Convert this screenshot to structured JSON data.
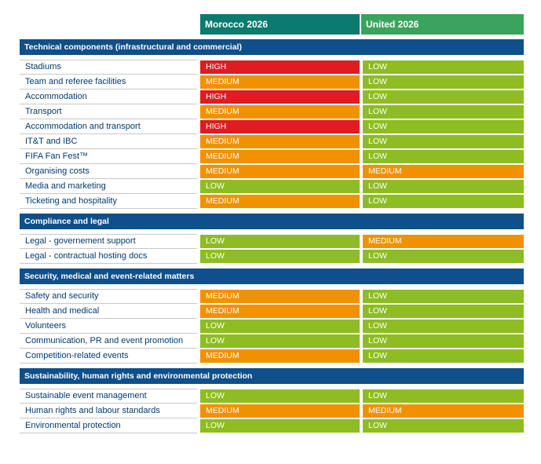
{
  "colors": {
    "section_bar": "#0f4f8a",
    "header_morocco": "#0b7a6f",
    "header_united": "#3aa35c",
    "label_text": "#003a70",
    "HIGH": "#e01b22",
    "MEDIUM": "#f29100",
    "LOW": "#8dbd22"
  },
  "columns": [
    "Morocco 2026",
    "United 2026"
  ],
  "sections": [
    {
      "title": "Technical components (infrastructural and commercial)",
      "rows": [
        {
          "label": "Stadiums",
          "morocco": "HIGH",
          "united": "LOW"
        },
        {
          "label": "Team and referee facilities",
          "morocco": "MEDIUM",
          "united": "LOW"
        },
        {
          "label": "Accommodation",
          "morocco": "HIGH",
          "united": "LOW"
        },
        {
          "label": "Transport",
          "morocco": "MEDIUM",
          "united": "LOW"
        },
        {
          "label": "Accommodation and transport",
          "morocco": "HIGH",
          "united": "LOW"
        },
        {
          "label": "IT&T and IBC",
          "morocco": "MEDIUM",
          "united": "LOW"
        },
        {
          "label": "FIFA Fan Fest™",
          "morocco": "MEDIUM",
          "united": "LOW"
        },
        {
          "label": "Organising costs",
          "morocco": "MEDIUM",
          "united": "MEDIUM"
        },
        {
          "label": "Media and marketing",
          "morocco": "LOW",
          "united": "LOW"
        },
        {
          "label": "Ticketing and hospitality",
          "morocco": "MEDIUM",
          "united": "LOW"
        }
      ]
    },
    {
      "title": "Compliance and legal",
      "rows": [
        {
          "label": "Legal - governement support",
          "morocco": "LOW",
          "united": "MEDIUM"
        },
        {
          "label": "Legal - contractual hosting docs",
          "morocco": "LOW",
          "united": "LOW"
        }
      ]
    },
    {
      "title": "Security, medical and event-related matters",
      "rows": [
        {
          "label": "Safety and security",
          "morocco": "MEDIUM",
          "united": "LOW"
        },
        {
          "label": "Health and medical",
          "morocco": "MEDIUM",
          "united": "LOW"
        },
        {
          "label": "Volunteers",
          "morocco": "LOW",
          "united": "LOW"
        },
        {
          "label": "Communication, PR and event promotion",
          "morocco": "LOW",
          "united": "LOW"
        },
        {
          "label": "Competition-related events",
          "morocco": "MEDIUM",
          "united": "LOW"
        }
      ]
    },
    {
      "title": "Sustainability, human rights and environmental protection",
      "rows": [
        {
          "label": "Sustainable event management",
          "morocco": "LOW",
          "united": "LOW"
        },
        {
          "label": "Human rights and labour standards",
          "morocco": "MEDIUM",
          "united": "MEDIUM"
        },
        {
          "label": "Environmental protection",
          "morocco": "LOW",
          "united": "LOW"
        }
      ]
    }
  ]
}
